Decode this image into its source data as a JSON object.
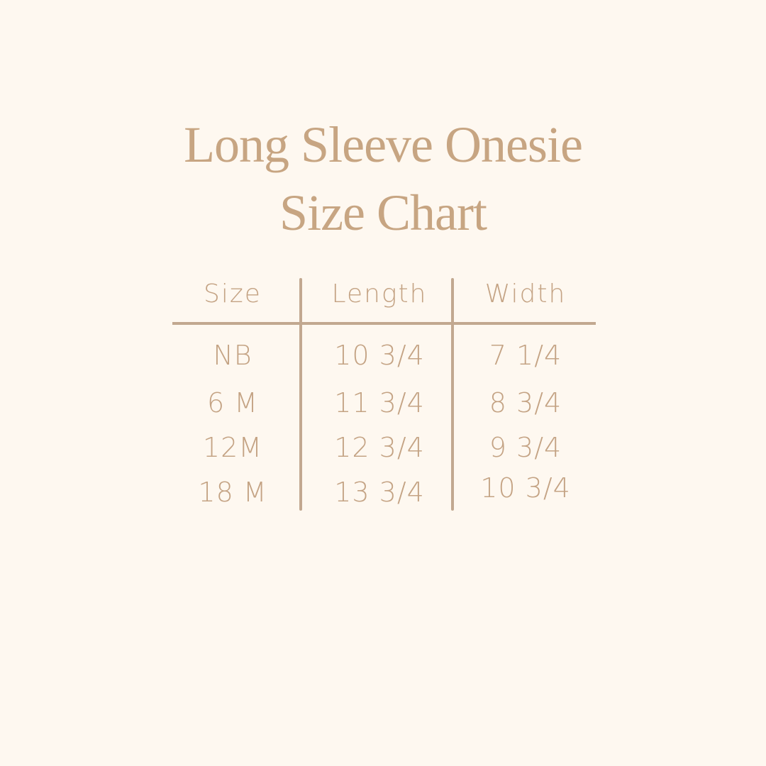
{
  "title": {
    "line1": "Long Sleeve Onesie",
    "line2": "Size Chart"
  },
  "table": {
    "headers": [
      "Size",
      "Length",
      "Width"
    ],
    "rows": [
      [
        "NB",
        "10 3/4",
        "7 1/4"
      ],
      [
        "6 M",
        "11 3/4",
        "8 3/4"
      ],
      [
        "12M",
        "12 3/4",
        "9 3/4"
      ],
      [
        "18 M",
        "13 3/4",
        "10 3/4"
      ]
    ]
  },
  "colors": {
    "background": "#fef8f0",
    "text": "#c4a384",
    "rule": "#c2a890"
  }
}
